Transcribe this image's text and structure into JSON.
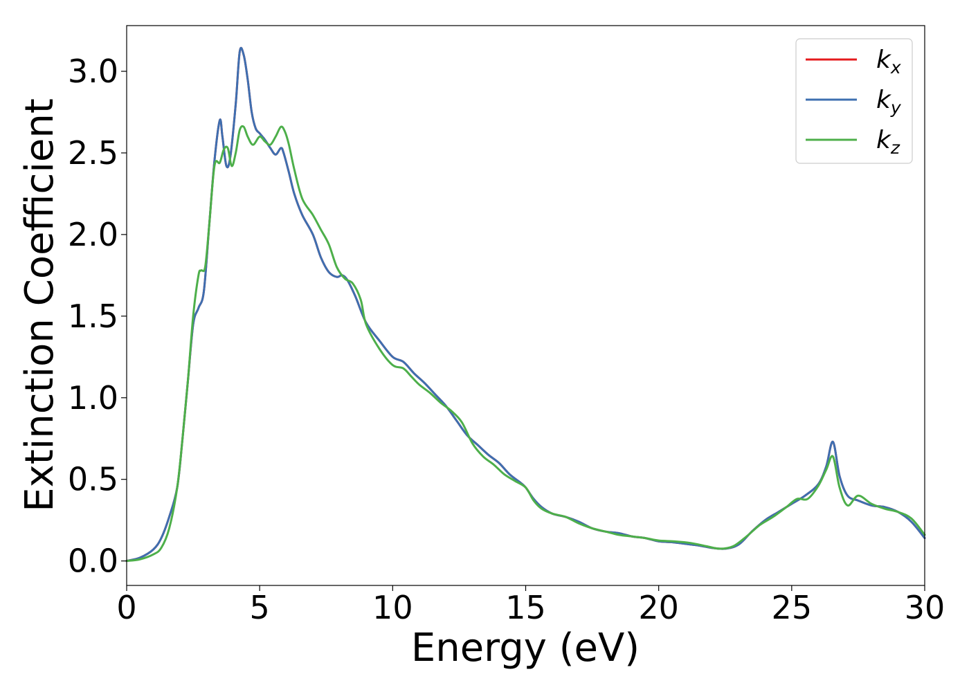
{
  "chart_data": {
    "type": "line",
    "title": "",
    "xlabel": "Energy (eV)",
    "ylabel": "Extinction Coefficient",
    "xlim": [
      0,
      30
    ],
    "ylim": [
      -0.15,
      3.28
    ],
    "xticks": [
      0,
      5,
      10,
      15,
      20,
      25,
      30
    ],
    "xtick_labels": [
      "0",
      "5",
      "10",
      "15",
      "20",
      "25",
      "30"
    ],
    "yticks": [
      0.0,
      0.5,
      1.0,
      1.5,
      2.0,
      2.5,
      3.0
    ],
    "ytick_labels": [
      "0.0",
      "0.5",
      "1.0",
      "1.5",
      "2.0",
      "2.5",
      "3.0"
    ],
    "grid": false,
    "legend_position": "top-right",
    "series": [
      {
        "name": "k",
        "subscript": "x",
        "color": "#e41a1c",
        "x": [
          0,
          0.5,
          1.0,
          1.3,
          1.6,
          1.9,
          2.1,
          2.3,
          2.5,
          2.7,
          2.9,
          3.1,
          3.3,
          3.5,
          3.6,
          3.75,
          3.9,
          4.1,
          4.25,
          4.4,
          4.55,
          4.7,
          4.85,
          5.0,
          5.2,
          5.4,
          5.6,
          5.8,
          5.9,
          6.1,
          6.3,
          6.6,
          7.0,
          7.3,
          7.6,
          7.9,
          8.1,
          8.3,
          8.6,
          9.0,
          9.5,
          10.0,
          10.4,
          10.8,
          11.2,
          11.6,
          12.0,
          12.4,
          12.8,
          13.2,
          13.6,
          14.0,
          14.4,
          14.8,
          15.0,
          15.3,
          15.6,
          16.0,
          16.5,
          17.0,
          17.5,
          18.0,
          18.5,
          19.0,
          19.5,
          20.0,
          20.5,
          21.0,
          21.5,
          22.0,
          22.5,
          23.0,
          23.5,
          24.0,
          24.5,
          25.0,
          25.5,
          26.0,
          26.3,
          26.55,
          26.8,
          27.1,
          27.5,
          28.0,
          28.5,
          29.0,
          29.5,
          30.0
        ],
        "y": [
          0.0,
          0.02,
          0.07,
          0.14,
          0.27,
          0.45,
          0.75,
          1.1,
          1.45,
          1.55,
          1.65,
          2.05,
          2.45,
          2.7,
          2.6,
          2.42,
          2.48,
          2.8,
          3.12,
          3.1,
          2.95,
          2.75,
          2.65,
          2.62,
          2.58,
          2.53,
          2.49,
          2.53,
          2.5,
          2.38,
          2.25,
          2.12,
          2.0,
          1.86,
          1.77,
          1.74,
          1.75,
          1.72,
          1.62,
          1.46,
          1.35,
          1.25,
          1.22,
          1.15,
          1.09,
          1.02,
          0.95,
          0.86,
          0.77,
          0.71,
          0.65,
          0.6,
          0.53,
          0.48,
          0.45,
          0.38,
          0.33,
          0.29,
          0.27,
          0.24,
          0.2,
          0.18,
          0.17,
          0.15,
          0.14,
          0.12,
          0.115,
          0.105,
          0.095,
          0.08,
          0.075,
          0.1,
          0.18,
          0.25,
          0.3,
          0.35,
          0.4,
          0.47,
          0.58,
          0.73,
          0.52,
          0.4,
          0.37,
          0.34,
          0.33,
          0.3,
          0.24,
          0.14
        ]
      },
      {
        "name": "k",
        "subscript": "y",
        "color": "#3e6fb0",
        "x": [
          0,
          0.5,
          1.0,
          1.3,
          1.6,
          1.9,
          2.1,
          2.3,
          2.5,
          2.7,
          2.9,
          3.1,
          3.3,
          3.5,
          3.6,
          3.75,
          3.9,
          4.1,
          4.25,
          4.4,
          4.55,
          4.7,
          4.85,
          5.0,
          5.2,
          5.4,
          5.6,
          5.8,
          5.9,
          6.1,
          6.3,
          6.6,
          7.0,
          7.3,
          7.6,
          7.9,
          8.1,
          8.3,
          8.6,
          9.0,
          9.5,
          10.0,
          10.4,
          10.8,
          11.2,
          11.6,
          12.0,
          12.4,
          12.8,
          13.2,
          13.6,
          14.0,
          14.4,
          14.8,
          15.0,
          15.3,
          15.6,
          16.0,
          16.5,
          17.0,
          17.5,
          18.0,
          18.5,
          19.0,
          19.5,
          20.0,
          20.5,
          21.0,
          21.5,
          22.0,
          22.5,
          23.0,
          23.5,
          24.0,
          24.5,
          25.0,
          25.5,
          26.0,
          26.3,
          26.55,
          26.8,
          27.1,
          27.5,
          28.0,
          28.5,
          29.0,
          29.5,
          30.0
        ],
        "y": [
          0.0,
          0.02,
          0.07,
          0.14,
          0.27,
          0.45,
          0.75,
          1.1,
          1.45,
          1.55,
          1.65,
          2.05,
          2.45,
          2.7,
          2.6,
          2.42,
          2.48,
          2.8,
          3.12,
          3.1,
          2.95,
          2.75,
          2.65,
          2.62,
          2.58,
          2.53,
          2.49,
          2.53,
          2.5,
          2.38,
          2.25,
          2.12,
          2.0,
          1.86,
          1.77,
          1.74,
          1.75,
          1.72,
          1.62,
          1.46,
          1.35,
          1.25,
          1.22,
          1.15,
          1.09,
          1.02,
          0.95,
          0.86,
          0.77,
          0.71,
          0.65,
          0.6,
          0.53,
          0.48,
          0.45,
          0.38,
          0.33,
          0.29,
          0.27,
          0.24,
          0.2,
          0.18,
          0.17,
          0.15,
          0.14,
          0.12,
          0.115,
          0.105,
          0.095,
          0.08,
          0.075,
          0.1,
          0.18,
          0.25,
          0.3,
          0.35,
          0.4,
          0.47,
          0.58,
          0.73,
          0.52,
          0.4,
          0.37,
          0.34,
          0.33,
          0.3,
          0.24,
          0.14
        ]
      },
      {
        "name": "k",
        "subscript": "z",
        "color": "#4daf4a",
        "x": [
          0,
          0.5,
          1.0,
          1.3,
          1.6,
          1.9,
          2.1,
          2.3,
          2.5,
          2.7,
          2.8,
          2.95,
          3.1,
          3.3,
          3.5,
          3.65,
          3.8,
          3.95,
          4.1,
          4.25,
          4.4,
          4.55,
          4.75,
          5.0,
          5.2,
          5.4,
          5.6,
          5.8,
          5.95,
          6.1,
          6.3,
          6.6,
          7.0,
          7.3,
          7.6,
          7.9,
          8.2,
          8.5,
          8.8,
          9.0,
          9.5,
          10.0,
          10.4,
          10.7,
          11.0,
          11.4,
          11.8,
          12.2,
          12.6,
          13.0,
          13.4,
          13.8,
          14.2,
          14.6,
          15.0,
          15.3,
          15.6,
          16.0,
          16.5,
          17.0,
          17.5,
          18.0,
          18.5,
          19.0,
          19.5,
          20.0,
          20.6,
          21.2,
          21.8,
          22.3,
          22.8,
          23.3,
          23.8,
          24.3,
          24.8,
          25.2,
          25.6,
          26.0,
          26.3,
          26.55,
          26.8,
          27.1,
          27.5,
          28.0,
          28.5,
          29.0,
          29.5,
          30.0
        ],
        "y": [
          0.0,
          0.01,
          0.04,
          0.08,
          0.2,
          0.45,
          0.75,
          1.1,
          1.5,
          1.75,
          1.78,
          1.8,
          2.05,
          2.42,
          2.44,
          2.52,
          2.53,
          2.42,
          2.5,
          2.64,
          2.66,
          2.6,
          2.55,
          2.6,
          2.57,
          2.55,
          2.6,
          2.66,
          2.63,
          2.55,
          2.4,
          2.22,
          2.12,
          2.03,
          1.94,
          1.8,
          1.73,
          1.7,
          1.6,
          1.45,
          1.3,
          1.2,
          1.18,
          1.13,
          1.08,
          1.03,
          0.97,
          0.92,
          0.85,
          0.72,
          0.64,
          0.59,
          0.53,
          0.49,
          0.45,
          0.37,
          0.32,
          0.29,
          0.27,
          0.23,
          0.2,
          0.18,
          0.16,
          0.15,
          0.14,
          0.125,
          0.12,
          0.11,
          0.09,
          0.075,
          0.09,
          0.15,
          0.22,
          0.27,
          0.33,
          0.38,
          0.38,
          0.46,
          0.56,
          0.64,
          0.45,
          0.34,
          0.4,
          0.35,
          0.32,
          0.3,
          0.26,
          0.16
        ]
      }
    ]
  }
}
